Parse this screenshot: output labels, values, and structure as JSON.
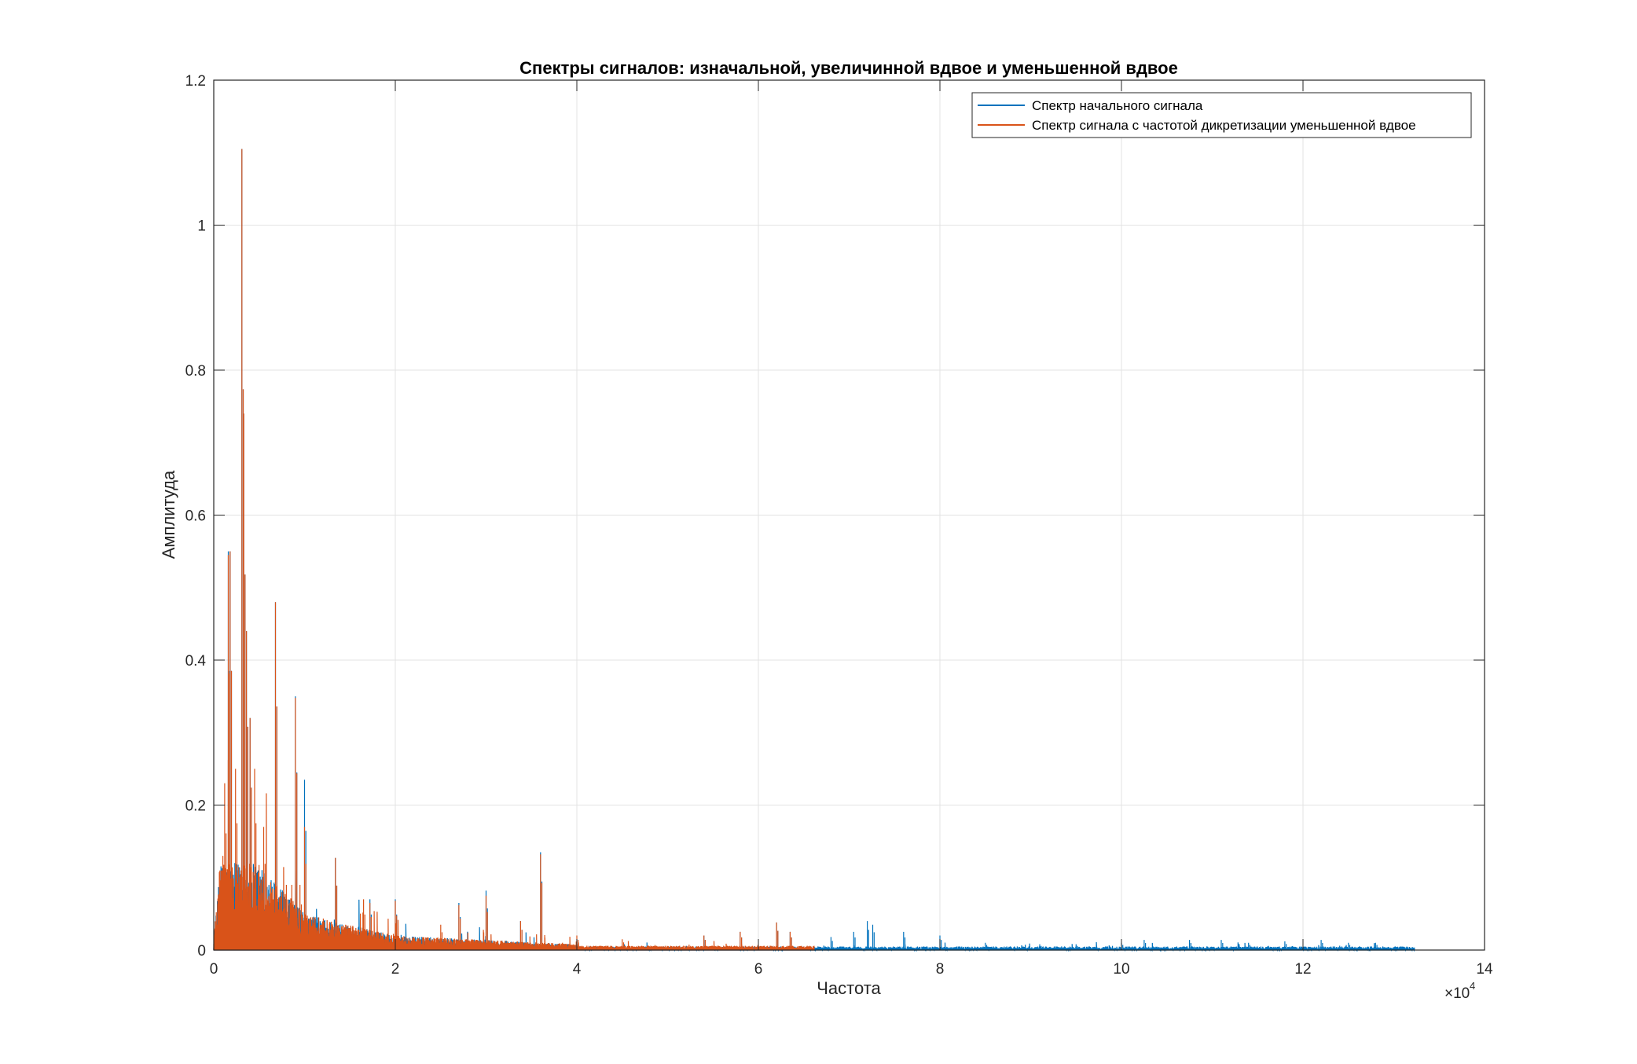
{
  "chart_data": {
    "type": "line",
    "title": "Спектры сигналов: изначальной, увеличинной вдвое и уменьшенной вдвое",
    "xlabel": "Частота",
    "ylabel": "Амплитуда",
    "xlim": [
      0,
      140000
    ],
    "ylim": [
      0,
      1.2
    ],
    "x_scale_exponent": "×10",
    "x_scale_power": "4",
    "x_ticks": [
      0,
      20000,
      40000,
      60000,
      80000,
      100000,
      120000,
      140000
    ],
    "x_tick_labels": [
      "0",
      "2",
      "4",
      "6",
      "8",
      "10",
      "12",
      "14"
    ],
    "y_ticks": [
      0,
      0.2,
      0.4,
      0.6,
      0.8,
      1.0,
      1.2
    ],
    "y_tick_labels": [
      "0",
      "0.2",
      "0.4",
      "0.6",
      "0.8",
      "1",
      "1.2"
    ],
    "grid": true,
    "legend_position": "top-right",
    "series": [
      {
        "name": "Спектр начального сигнала",
        "color": "#0072BD",
        "x_max": 132300,
        "noise_floor": 0.003,
        "peaks": [
          [
            1600,
            0.55
          ],
          [
            1800,
            0.55
          ],
          [
            3100,
            1.105
          ],
          [
            3300,
            0.74
          ],
          [
            3600,
            0.44
          ],
          [
            4000,
            0.32
          ],
          [
            6800,
            0.48
          ],
          [
            9000,
            0.35
          ],
          [
            10000,
            0.235
          ],
          [
            13400,
            0.127
          ],
          [
            17200,
            0.07
          ],
          [
            20000,
            0.07
          ],
          [
            27000,
            0.065
          ],
          [
            30000,
            0.082
          ],
          [
            33800,
            0.04
          ],
          [
            36000,
            0.135
          ],
          [
            54000,
            0.02
          ],
          [
            58000,
            0.025
          ],
          [
            62000,
            0.038
          ],
          [
            63500,
            0.025
          ],
          [
            68000,
            0.018
          ],
          [
            70500,
            0.025
          ],
          [
            72000,
            0.04
          ],
          [
            72600,
            0.035
          ],
          [
            76000,
            0.025
          ],
          [
            80000,
            0.02
          ],
          [
            85000,
            0.01
          ],
          [
            91000,
            0.008
          ],
          [
            95000,
            0.008
          ],
          [
            100000,
            0.01
          ],
          [
            102500,
            0.014
          ],
          [
            107500,
            0.014
          ],
          [
            111000,
            0.014
          ],
          [
            114000,
            0.01
          ],
          [
            118000,
            0.012
          ],
          [
            122000,
            0.014
          ],
          [
            125000,
            0.01
          ],
          [
            128000,
            0.01
          ]
        ]
      },
      {
        "name": "Спектр сигнала с частотой дикретизации уменьшенной вдвое",
        "color": "#D95319",
        "x_max": 66150,
        "noise_floor": 0.004,
        "peaks": [
          [
            1000,
            0.13
          ],
          [
            1200,
            0.23
          ],
          [
            1600,
            0.545
          ],
          [
            1800,
            0.55
          ],
          [
            2400,
            0.25
          ],
          [
            3100,
            1.105
          ],
          [
            3300,
            0.74
          ],
          [
            3600,
            0.44
          ],
          [
            4000,
            0.32
          ],
          [
            4500,
            0.25
          ],
          [
            5500,
            0.17
          ],
          [
            6800,
            0.48
          ],
          [
            7500,
            0.08
          ],
          [
            8000,
            0.09
          ],
          [
            8600,
            0.09
          ],
          [
            9000,
            0.348
          ],
          [
            9500,
            0.09
          ],
          [
            10000,
            0.17
          ],
          [
            13400,
            0.127
          ],
          [
            16500,
            0.07
          ],
          [
            17200,
            0.065
          ],
          [
            20000,
            0.068
          ],
          [
            25000,
            0.035
          ],
          [
            27000,
            0.062
          ],
          [
            30000,
            0.075
          ],
          [
            33800,
            0.04
          ],
          [
            36000,
            0.132
          ],
          [
            40000,
            0.02
          ],
          [
            45000,
            0.015
          ],
          [
            54000,
            0.02
          ],
          [
            58000,
            0.025
          ],
          [
            62000,
            0.038
          ],
          [
            63500,
            0.025
          ]
        ]
      }
    ]
  }
}
